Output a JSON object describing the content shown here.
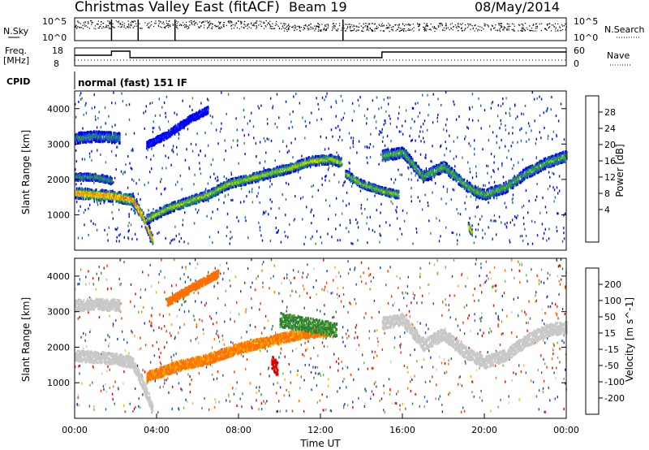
{
  "header": {
    "title": "Christmas Valley East (fitACF)",
    "beam": "Beam 19",
    "date": "08/May/2014"
  },
  "nsky_panel": {
    "left_label": "N.Sky",
    "left_ticks": [
      "10^5",
      "10^0"
    ],
    "right_label": "N.Search",
    "right_ticks": [
      "10^5",
      "10^0"
    ]
  },
  "freq_panel": {
    "left_label_line1": "Freq.",
    "left_label_line2": "[MHz]",
    "left_ticks": [
      "18",
      "8"
    ],
    "right_label": "Nave",
    "right_ticks": [
      "60",
      "0"
    ]
  },
  "cpid": {
    "label": "CPID",
    "mode": "normal (fast) 151 IF"
  },
  "power_colorbar": {
    "label": "Power [dB]",
    "ticks": [
      "28",
      "24",
      "20",
      "16",
      "12",
      "8",
      "4"
    ],
    "colors": [
      "#e00000",
      "#ff3000",
      "#ff8000",
      "#ffd000",
      "#a0d000",
      "#40b040",
      "#2e8b57",
      "#1a5fb4",
      "#0000ff"
    ]
  },
  "velocity_colorbar": {
    "label": "Velocity [m s^-1]",
    "ticks": [
      "200",
      "100",
      "50",
      "15",
      "-15",
      "-50",
      "-100",
      "-200"
    ],
    "colors": [
      "#1030c0",
      "#2050b0",
      "#2e7d32",
      "#5ec040",
      "#c8c8c8",
      "#ffb000",
      "#ff7000",
      "#ff3000",
      "#e00000"
    ]
  },
  "chart_data": [
    {
      "type": "heatmap",
      "name": "power",
      "ylabel": "Slant Range [km]",
      "ylim": [
        0,
        4500
      ],
      "yticks": [
        1000,
        2000,
        3000,
        4000
      ],
      "xlim": [
        0,
        24
      ],
      "colorbar_range_db": [
        0,
        32
      ],
      "bands": [
        {
          "points": [
            [
              0,
              1650
            ],
            [
              1,
              1600
            ],
            [
              2,
              1550
            ],
            [
              2.8,
              1450
            ],
            [
              3.3,
              1000
            ],
            [
              3.8,
              300
            ]
          ],
          "width": 150,
          "db": 26
        },
        {
          "points": [
            [
              3.5,
              900
            ],
            [
              4.5,
              1200
            ],
            [
              5.5,
              1400
            ],
            [
              6.5,
              1600
            ],
            [
              7.5,
              1900
            ],
            [
              8.5,
              2050
            ],
            [
              9.5,
              2200
            ],
            [
              10.5,
              2350
            ],
            [
              11.5,
              2550
            ],
            [
              12.5,
              2600
            ],
            [
              13,
              2500
            ]
          ],
          "width": 130,
          "db": 18
        },
        {
          "points": [
            [
              13.2,
              2200
            ],
            [
              14,
              1900
            ],
            [
              15,
              1700
            ],
            [
              15.8,
              1600
            ]
          ],
          "width": 110,
          "db": 17
        },
        {
          "points": [
            [
              15,
              2700
            ],
            [
              16,
              2800
            ],
            [
              17,
              2100
            ],
            [
              18,
              2400
            ],
            [
              19,
              1900
            ],
            [
              19.5,
              1700
            ],
            [
              20,
              1600
            ],
            [
              21,
              1800
            ],
            [
              22,
              2200
            ],
            [
              23,
              2500
            ],
            [
              24,
              2700
            ]
          ],
          "width": 150,
          "db": 14
        },
        {
          "points": [
            [
              0,
              2100
            ],
            [
              1,
              2100
            ],
            [
              1.8,
              2000
            ]
          ],
          "width": 100,
          "db": 12
        },
        {
          "points": [
            [
              0,
              3200
            ],
            [
              1,
              3250
            ],
            [
              2.2,
              3200
            ]
          ],
          "width": 150,
          "db": 10
        },
        {
          "points": [
            [
              3.5,
              3000
            ],
            [
              4.5,
              3300
            ],
            [
              5.5,
              3700
            ],
            [
              6.5,
              4000
            ]
          ],
          "width": 100,
          "db": 5
        },
        {
          "points": [
            [
              19.2,
              700
            ],
            [
              19.4,
              500
            ]
          ],
          "width": 120,
          "db": 20
        }
      ]
    },
    {
      "type": "heatmap",
      "name": "velocity",
      "ylabel": "Slant Range [km]",
      "xlabel": "Time UT",
      "ylim": [
        0,
        4500
      ],
      "yticks": [
        1000,
        2000,
        3000,
        4000
      ],
      "xlim": [
        0,
        24
      ],
      "xticks": [
        "00:00",
        "04:00",
        "08:00",
        "12:00",
        "16:00",
        "20:00",
        "00:00"
      ],
      "xtick_hours": [
        0,
        4,
        8,
        12,
        16,
        20,
        24
      ],
      "colorbar_range_ms": [
        -200,
        200
      ],
      "bands": [
        {
          "points": [
            [
              0,
              1800
            ],
            [
              1,
              1750
            ],
            [
              2,
              1700
            ],
            [
              2.8,
              1600
            ],
            [
              3.3,
              1000
            ],
            [
              3.8,
              300
            ]
          ],
          "width": 160,
          "vel": 0
        },
        {
          "points": [
            [
              3.5,
              1200
            ],
            [
              5,
              1500
            ],
            [
              6.5,
              1700
            ],
            [
              8,
              2000
            ],
            [
              9.5,
              2200
            ],
            [
              11,
              2400
            ],
            [
              12.5,
              2500
            ]
          ],
          "width": 140,
          "vel": -40
        },
        {
          "points": [
            [
              10,
              2800
            ],
            [
              11,
              2700
            ],
            [
              12,
              2600
            ],
            [
              12.8,
              2500
            ]
          ],
          "width": 200,
          "vel": 40
        },
        {
          "points": [
            [
              15,
              2700
            ],
            [
              16,
              2800
            ],
            [
              17,
              2100
            ],
            [
              18,
              2400
            ],
            [
              19,
              1900
            ],
            [
              20,
              1600
            ],
            [
              21,
              1800
            ],
            [
              22,
              2200
            ],
            [
              23,
              2500
            ],
            [
              24,
              2600
            ]
          ],
          "width": 170,
          "vel": 0
        },
        {
          "points": [
            [
              0,
              3200
            ],
            [
              1,
              3250
            ],
            [
              2.2,
              3200
            ]
          ],
          "width": 160,
          "vel": 0
        },
        {
          "points": [
            [
              4.5,
              3300
            ],
            [
              6,
              3800
            ],
            [
              7,
              4100
            ]
          ],
          "width": 110,
          "vel": -60
        },
        {
          "points": [
            [
              9.6,
              1600
            ],
            [
              9.9,
              1400
            ]
          ],
          "width": 200,
          "vel": -180
        }
      ]
    }
  ]
}
